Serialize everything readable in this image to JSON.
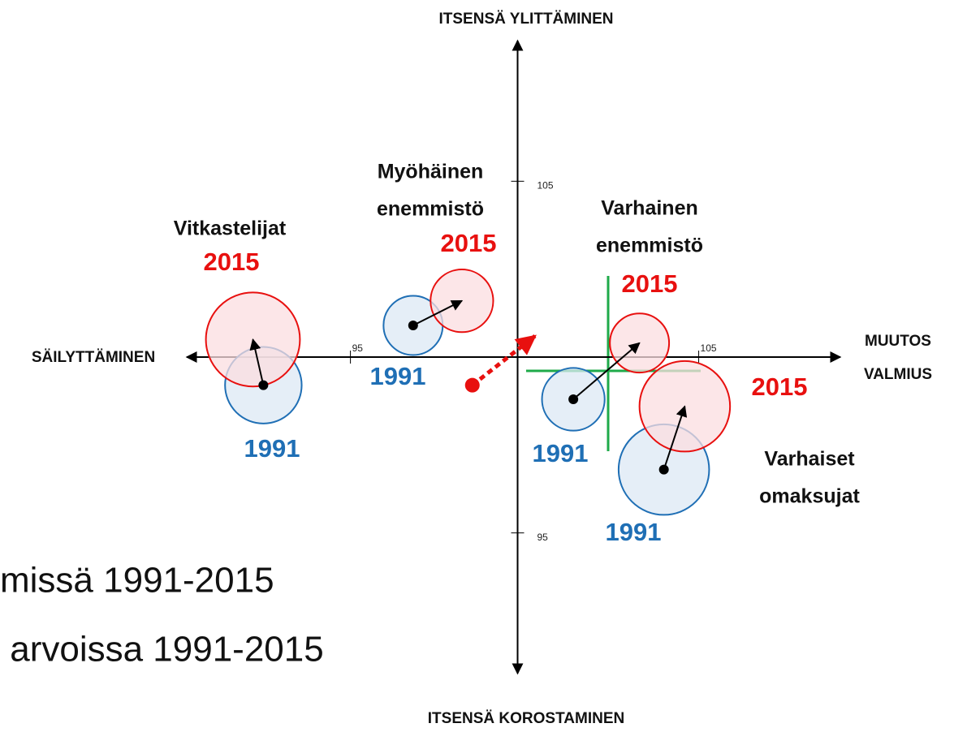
{
  "chart_data": {
    "type": "bubble",
    "axis_labels": {
      "top": "ITSENSÄ YLITTÄMINEN",
      "bottom": "ITSENSÄ KOROSTAMINEN",
      "left": "SÄILYTTÄMINEN",
      "right": [
        "MUUTOS",
        "VALMIUS"
      ]
    },
    "side_text": [
      "missä 1991-2015",
      " arvoissa 1991-2015"
    ],
    "categories": [
      [
        "Vitkastelijat"
      ],
      [
        "Myöhäinen",
        "enemmistö"
      ],
      [
        "Varhainen",
        "enemmistö"
      ],
      [
        "Varhaiset",
        "omaksujat"
      ]
    ],
    "series": [
      {
        "name": "1991",
        "color": "#1f6fb5",
        "fill": "#dce8f4",
        "x": [
          92.5,
          96.8,
          101.4,
          104.0
        ],
        "y": [
          99.2,
          100.9,
          98.8,
          96.8
        ],
        "size": [
          1.1,
          0.85,
          0.9,
          1.3
        ]
      },
      {
        "name": "2015",
        "color": "#e8100f",
        "fill": "#fbdde0",
        "x": [
          92.2,
          98.2,
          103.3,
          104.6
        ],
        "y": [
          100.5,
          101.6,
          100.4,
          98.6
        ],
        "size": [
          1.35,
          0.9,
          0.85,
          1.3
        ]
      }
    ],
    "shift": {
      "color": "#e8100f",
      "x": [
        98.5,
        100.3
      ],
      "y": [
        99.2,
        100.6
      ]
    },
    "xlim": [
      90.3,
      109.3
    ],
    "ylim": [
      91,
      109
    ],
    "xticks": [
      95,
      105
    ],
    "yticks": [
      95,
      105
    ]
  }
}
